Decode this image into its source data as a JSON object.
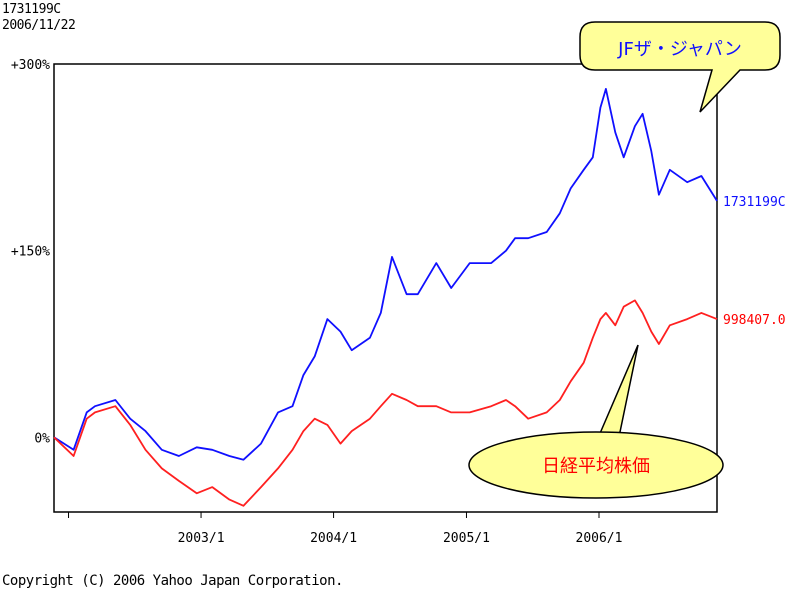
{
  "header": {
    "code": "1731199C",
    "date": "2006/11/22"
  },
  "footer": {
    "copyright": "Copyright (C) 2006 Yahoo Japan Corporation."
  },
  "callouts": {
    "fund": "JFザ・ジャパン",
    "index": "日経平均株価"
  },
  "colors": {
    "fund": "#1010ff",
    "index": "#ff2020",
    "callout_fill": "#ffff99",
    "fund_text": "#1010ff",
    "index_text": "#ff0000"
  },
  "chart_data": {
    "type": "line",
    "x_unit": "date",
    "y_unit": "% change",
    "xlim": [
      "2001-11-22",
      "2006-11-22"
    ],
    "ylim": [
      -60,
      300
    ],
    "y_ticks": [
      {
        "value": 300,
        "label": "+300%"
      },
      {
        "value": 150,
        "label": "+150%"
      },
      {
        "value": 0,
        "label": "0%"
      }
    ],
    "x_ticks": [
      {
        "value": "2002-01-01",
        "label": ""
      },
      {
        "value": "2003-01-01",
        "label": "2003/1"
      },
      {
        "value": "2004-01-01",
        "label": "2004/1"
      },
      {
        "value": "2005-01-01",
        "label": "2005/1"
      },
      {
        "value": "2006-01-01",
        "label": "2006/1"
      }
    ],
    "grid": true,
    "series": [
      {
        "name": "1731199C",
        "x": [
          "2001-11-22",
          "2002-01-15",
          "2002-02-20",
          "2002-03-15",
          "2002-05-10",
          "2002-06-20",
          "2002-08-01",
          "2002-09-15",
          "2002-11-01",
          "2002-12-20",
          "2003-02-01",
          "2003-03-20",
          "2003-04-28",
          "2003-06-15",
          "2003-08-01",
          "2003-09-10",
          "2003-10-10",
          "2003-11-10",
          "2003-12-15",
          "2004-01-20",
          "2004-02-20",
          "2004-04-10",
          "2004-05-10",
          "2004-06-10",
          "2004-07-20",
          "2004-08-20",
          "2004-10-10",
          "2004-11-20",
          "2005-01-10",
          "2005-03-10",
          "2005-04-20",
          "2005-05-15",
          "2005-06-20",
          "2005-08-10",
          "2005-09-15",
          "2005-10-15",
          "2005-11-20",
          "2005-12-15",
          "2006-01-05",
          "2006-01-20",
          "2006-02-15",
          "2006-03-10",
          "2006-04-10",
          "2006-05-01",
          "2006-05-25",
          "2006-06-15",
          "2006-07-15",
          "2006-09-01",
          "2006-10-10",
          "2006-11-22"
        ],
        "y": [
          0,
          -10,
          20,
          25,
          30,
          15,
          5,
          -10,
          -15,
          -8,
          -10,
          -15,
          -18,
          -5,
          20,
          25,
          50,
          65,
          95,
          85,
          70,
          80,
          100,
          145,
          115,
          115,
          140,
          120,
          140,
          140,
          150,
          160,
          160,
          165,
          180,
          200,
          215,
          225,
          265,
          280,
          245,
          225,
          250,
          260,
          230,
          195,
          215,
          205,
          210,
          190
        ]
      },
      {
        "name": "998407.0",
        "x": [
          "2001-11-22",
          "2002-01-15",
          "2002-02-20",
          "2002-03-15",
          "2002-05-10",
          "2002-06-20",
          "2002-08-01",
          "2002-09-15",
          "2002-11-01",
          "2002-12-20",
          "2003-02-01",
          "2003-03-20",
          "2003-04-28",
          "2003-06-15",
          "2003-08-01",
          "2003-09-10",
          "2003-10-10",
          "2003-11-10",
          "2003-12-15",
          "2004-01-20",
          "2004-02-20",
          "2004-04-10",
          "2004-05-10",
          "2004-06-10",
          "2004-07-20",
          "2004-08-20",
          "2004-10-10",
          "2004-11-20",
          "2005-01-10",
          "2005-03-10",
          "2005-04-20",
          "2005-05-15",
          "2005-06-20",
          "2005-08-10",
          "2005-09-15",
          "2005-10-15",
          "2005-11-20",
          "2005-12-15",
          "2006-01-05",
          "2006-01-20",
          "2006-02-15",
          "2006-03-10",
          "2006-04-10",
          "2006-05-01",
          "2006-05-25",
          "2006-06-15",
          "2006-07-15",
          "2006-09-01",
          "2006-10-10",
          "2006-11-22"
        ],
        "y": [
          0,
          -15,
          15,
          20,
          25,
          10,
          -10,
          -25,
          -35,
          -45,
          -40,
          -50,
          -55,
          -40,
          -25,
          -10,
          5,
          15,
          10,
          -5,
          5,
          15,
          25,
          35,
          30,
          25,
          25,
          20,
          20,
          25,
          30,
          25,
          15,
          20,
          30,
          45,
          60,
          80,
          95,
          100,
          90,
          105,
          110,
          100,
          85,
          75,
          90,
          95,
          100,
          95
        ]
      }
    ]
  }
}
